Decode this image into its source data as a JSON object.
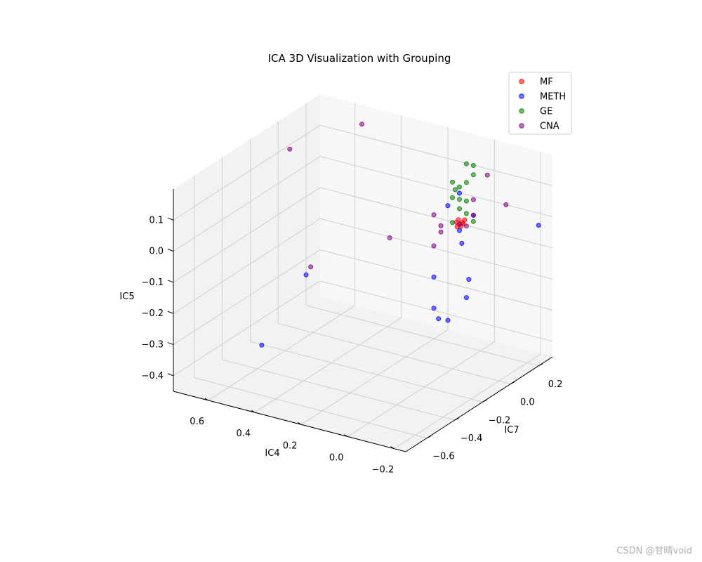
{
  "chart_data": {
    "type": "scatter",
    "title": "ICA 3D Visualization with Grouping",
    "xlabel": "IC4",
    "ylabel": "IC7",
    "zlabel": "IC5",
    "xticks": [
      "0.6",
      "0.4",
      "0.2",
      "0.0",
      "−0.2"
    ],
    "yticks": [
      "0.2",
      "0.0",
      "−0.2",
      "−0.4",
      "−0.6"
    ],
    "zticks": [
      "0.1",
      "0.0",
      "−0.1",
      "−0.2",
      "−0.3",
      "−0.4"
    ],
    "grid": true,
    "legend_position": "top-right",
    "series": [
      {
        "name": "MF",
        "color": "#ff0000",
        "points": [
          [
            0.0,
            0.05,
            0.0
          ],
          [
            0.01,
            0.06,
            0.01
          ],
          [
            -0.01,
            0.06,
            0.0
          ],
          [
            0.0,
            0.07,
            0.0
          ],
          [
            0.01,
            0.05,
            -0.01
          ],
          [
            -0.01,
            0.07,
            0.01
          ],
          [
            0.0,
            0.06,
            -0.01
          ],
          [
            0.02,
            0.06,
            0.0
          ]
        ]
      },
      {
        "name": "METH",
        "color": "#0000ff",
        "points": [
          [
            0.6,
            -0.05,
            -0.25
          ],
          [
            0.55,
            -0.45,
            -0.35
          ],
          [
            0.05,
            -0.05,
            -0.15
          ],
          [
            0.0,
            0.05,
            -0.02
          ],
          [
            0.05,
            0.05,
            0.05
          ],
          [
            0.0,
            0.15,
            0.0
          ],
          [
            -0.1,
            0.45,
            -0.1
          ],
          [
            0.02,
            -0.1,
            -0.23
          ],
          [
            0.0,
            -0.1,
            -0.26
          ],
          [
            0.0,
            0.05,
            0.1
          ],
          [
            0.2,
            0.3,
            -0.42
          ],
          [
            0.05,
            0.15,
            -0.1
          ],
          [
            0.0,
            0.1,
            -0.25
          ],
          [
            0.05,
            0.2,
            -0.23
          ]
        ]
      },
      {
        "name": "GE",
        "color": "#008000",
        "points": [
          [
            0.0,
            0.0,
            0.15
          ],
          [
            0.0,
            0.1,
            0.18
          ],
          [
            0.0,
            0.0,
            0.1
          ],
          [
            0.0,
            0.05,
            0.12
          ],
          [
            0.0,
            0.02,
            0.12
          ],
          [
            0.0,
            0.1,
            0.12
          ],
          [
            0.0,
            0.05,
            0.08
          ],
          [
            0.0,
            0.05,
            0.05
          ],
          [
            0.0,
            0.1,
            0.06
          ],
          [
            0.0,
            0.15,
            -0.02
          ],
          [
            0.0,
            0.0,
            0.02
          ],
          [
            0.0,
            0.1,
            0.02
          ],
          [
            0.0,
            0.15,
            0.16
          ],
          [
            0.0,
            0.15,
            0.13
          ]
        ]
      },
      {
        "name": "CNA",
        "color": "#800080",
        "points": [
          [
            0.7,
            0.0,
            0.12
          ],
          [
            0.45,
            0.1,
            0.22
          ],
          [
            0.55,
            -0.1,
            -0.2
          ],
          [
            0.15,
            -0.2,
            0.0
          ],
          [
            0.05,
            -0.05,
            0.05
          ],
          [
            0.05,
            0.0,
            -0.02
          ],
          [
            0.05,
            0.0,
            0.0
          ],
          [
            0.0,
            0.05,
            0.0
          ],
          [
            0.0,
            0.15,
            0.0
          ],
          [
            0.0,
            0.15,
            0.05
          ],
          [
            0.0,
            0.25,
            0.1
          ],
          [
            -0.05,
            0.3,
            0.0
          ],
          [
            0.05,
            -0.05,
            -0.05
          ],
          [
            0.0,
            0.1,
            -0.02
          ]
        ]
      }
    ]
  },
  "watermark": "CSDN @甘晴void"
}
